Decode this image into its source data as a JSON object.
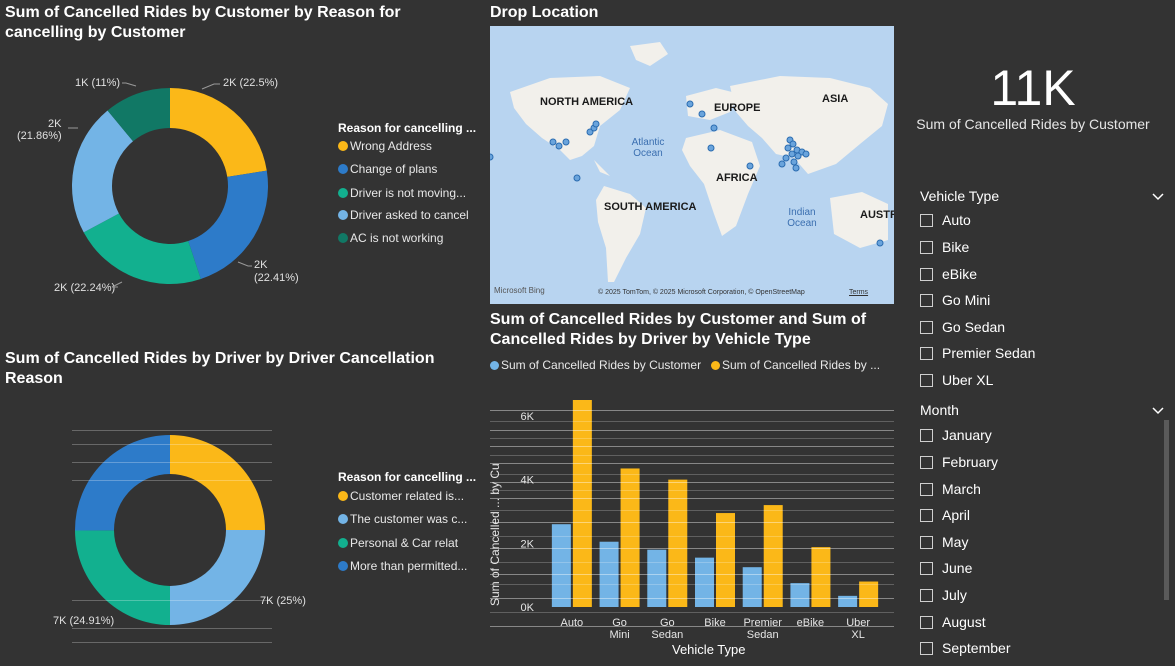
{
  "colors": {
    "yellow": "#FBB818",
    "dark_blue": "#2D7BC9",
    "teal": "#12B08F",
    "light_blue": "#73B4E6",
    "dark_teal": "#117865"
  },
  "donut1": {
    "title": "Sum of Cancelled Rides by Customer by Reason for cancelling by Customer",
    "legend_title": "Reason for cancelling ...",
    "legend": [
      "Wrong Address",
      "Change of plans",
      "Driver is not moving...",
      "Driver asked to cancel",
      "AC is not working"
    ],
    "callouts": {
      "top_right": "2K (22.5%)",
      "right_1": "2K",
      "right_2": "(22.41%)",
      "bottom": "2K (22.24%)",
      "left_1": "2K",
      "left_2": "(21.86%)",
      "top": "1K (11%)"
    }
  },
  "map": {
    "title": "Drop Location",
    "continents": [
      "NORTH AMERICA",
      "EUROPE",
      "ASIA",
      "AFRICA",
      "SOUTH AMERICA",
      "AUSTR"
    ],
    "oceans": [
      "Atlantic Ocean",
      "Indian Ocean"
    ],
    "credit": "© 2025 TomTom, © 2025 Microsoft Corporation, © OpenStreetMap",
    "terms": "Terms",
    "bing": "Microsoft Bing"
  },
  "card": {
    "value": "11K",
    "label": "Sum of Cancelled Rides by Customer"
  },
  "vehicle_slicer": {
    "title": "Vehicle Type",
    "items": [
      "Auto",
      "Bike",
      "eBike",
      "Go Mini",
      "Go Sedan",
      "Premier Sedan",
      "Uber XL"
    ]
  },
  "month_slicer": {
    "title": "Month",
    "items": [
      "January",
      "February",
      "March",
      "April",
      "May",
      "June",
      "July",
      "August",
      "September"
    ]
  },
  "donut2": {
    "title": "Sum of Cancelled Rides by Driver by Driver Cancellation Reason",
    "legend_title": "Reason for cancelling ...",
    "legend": [
      "Customer related is...",
      "The customer was c...",
      "Personal & Car relat",
      "More than permitted..."
    ],
    "callouts": {
      "right": "7K (25%)",
      "bottom": "7K (24.91%)"
    }
  },
  "bar": {
    "title": "Sum of Cancelled Rides by Customer and Sum of Cancelled Rides by Driver by Vehicle Type",
    "legend": [
      "Sum of Cancelled Rides by Customer",
      "Sum of Cancelled Rides by ..."
    ],
    "ylabel": "Sum of Cancelled ... by Cu",
    "xlabel": "Vehicle Type",
    "yticks": [
      "0K",
      "2K",
      "4K",
      "6K"
    ],
    "categories": [
      "Auto",
      "Go Mini",
      "Go Sedan",
      "Bike",
      "Premier Sedan",
      "eBike",
      "Uber XL"
    ]
  },
  "chart_data": [
    {
      "type": "pie",
      "title": "Sum of Cancelled Rides by Customer by Reason for cancelling by Customer",
      "labels": [
        "Wrong Address",
        "Change of plans",
        "Driver is not moving...",
        "Driver asked to cancel",
        "AC is not working"
      ],
      "values": [
        22.5,
        22.41,
        22.24,
        21.86,
        11
      ],
      "unit": "%"
    },
    {
      "type": "pie",
      "title": "Sum of Cancelled Rides by Driver by Driver Cancellation Reason",
      "labels": [
        "Customer related is...",
        "The customer was c...",
        "Personal & Car relat",
        "More than permitted..."
      ],
      "values": [
        25,
        25,
        24.91,
        25.09
      ],
      "unit": "%"
    },
    {
      "type": "bar",
      "title": "Sum of Cancelled Rides by Customer and Sum of Cancelled Rides by Driver by Vehicle Type",
      "categories": [
        "Auto",
        "Go Mini",
        "Go Sedan",
        "Bike",
        "Premier Sedan",
        "eBike",
        "Uber XL"
      ],
      "series": [
        {
          "name": "Sum of Cancelled Rides by Customer",
          "values": [
            2600,
            2050,
            1800,
            1550,
            1250,
            750,
            350
          ]
        },
        {
          "name": "Sum of Cancelled Rides by ...",
          "values": [
            6500,
            4350,
            4000,
            2950,
            3200,
            1880,
            800
          ]
        }
      ],
      "xlabel": "Vehicle Type",
      "ylabel": "Sum of Cancelled ... by Cu",
      "ylim": [
        0,
        6500
      ]
    }
  ]
}
